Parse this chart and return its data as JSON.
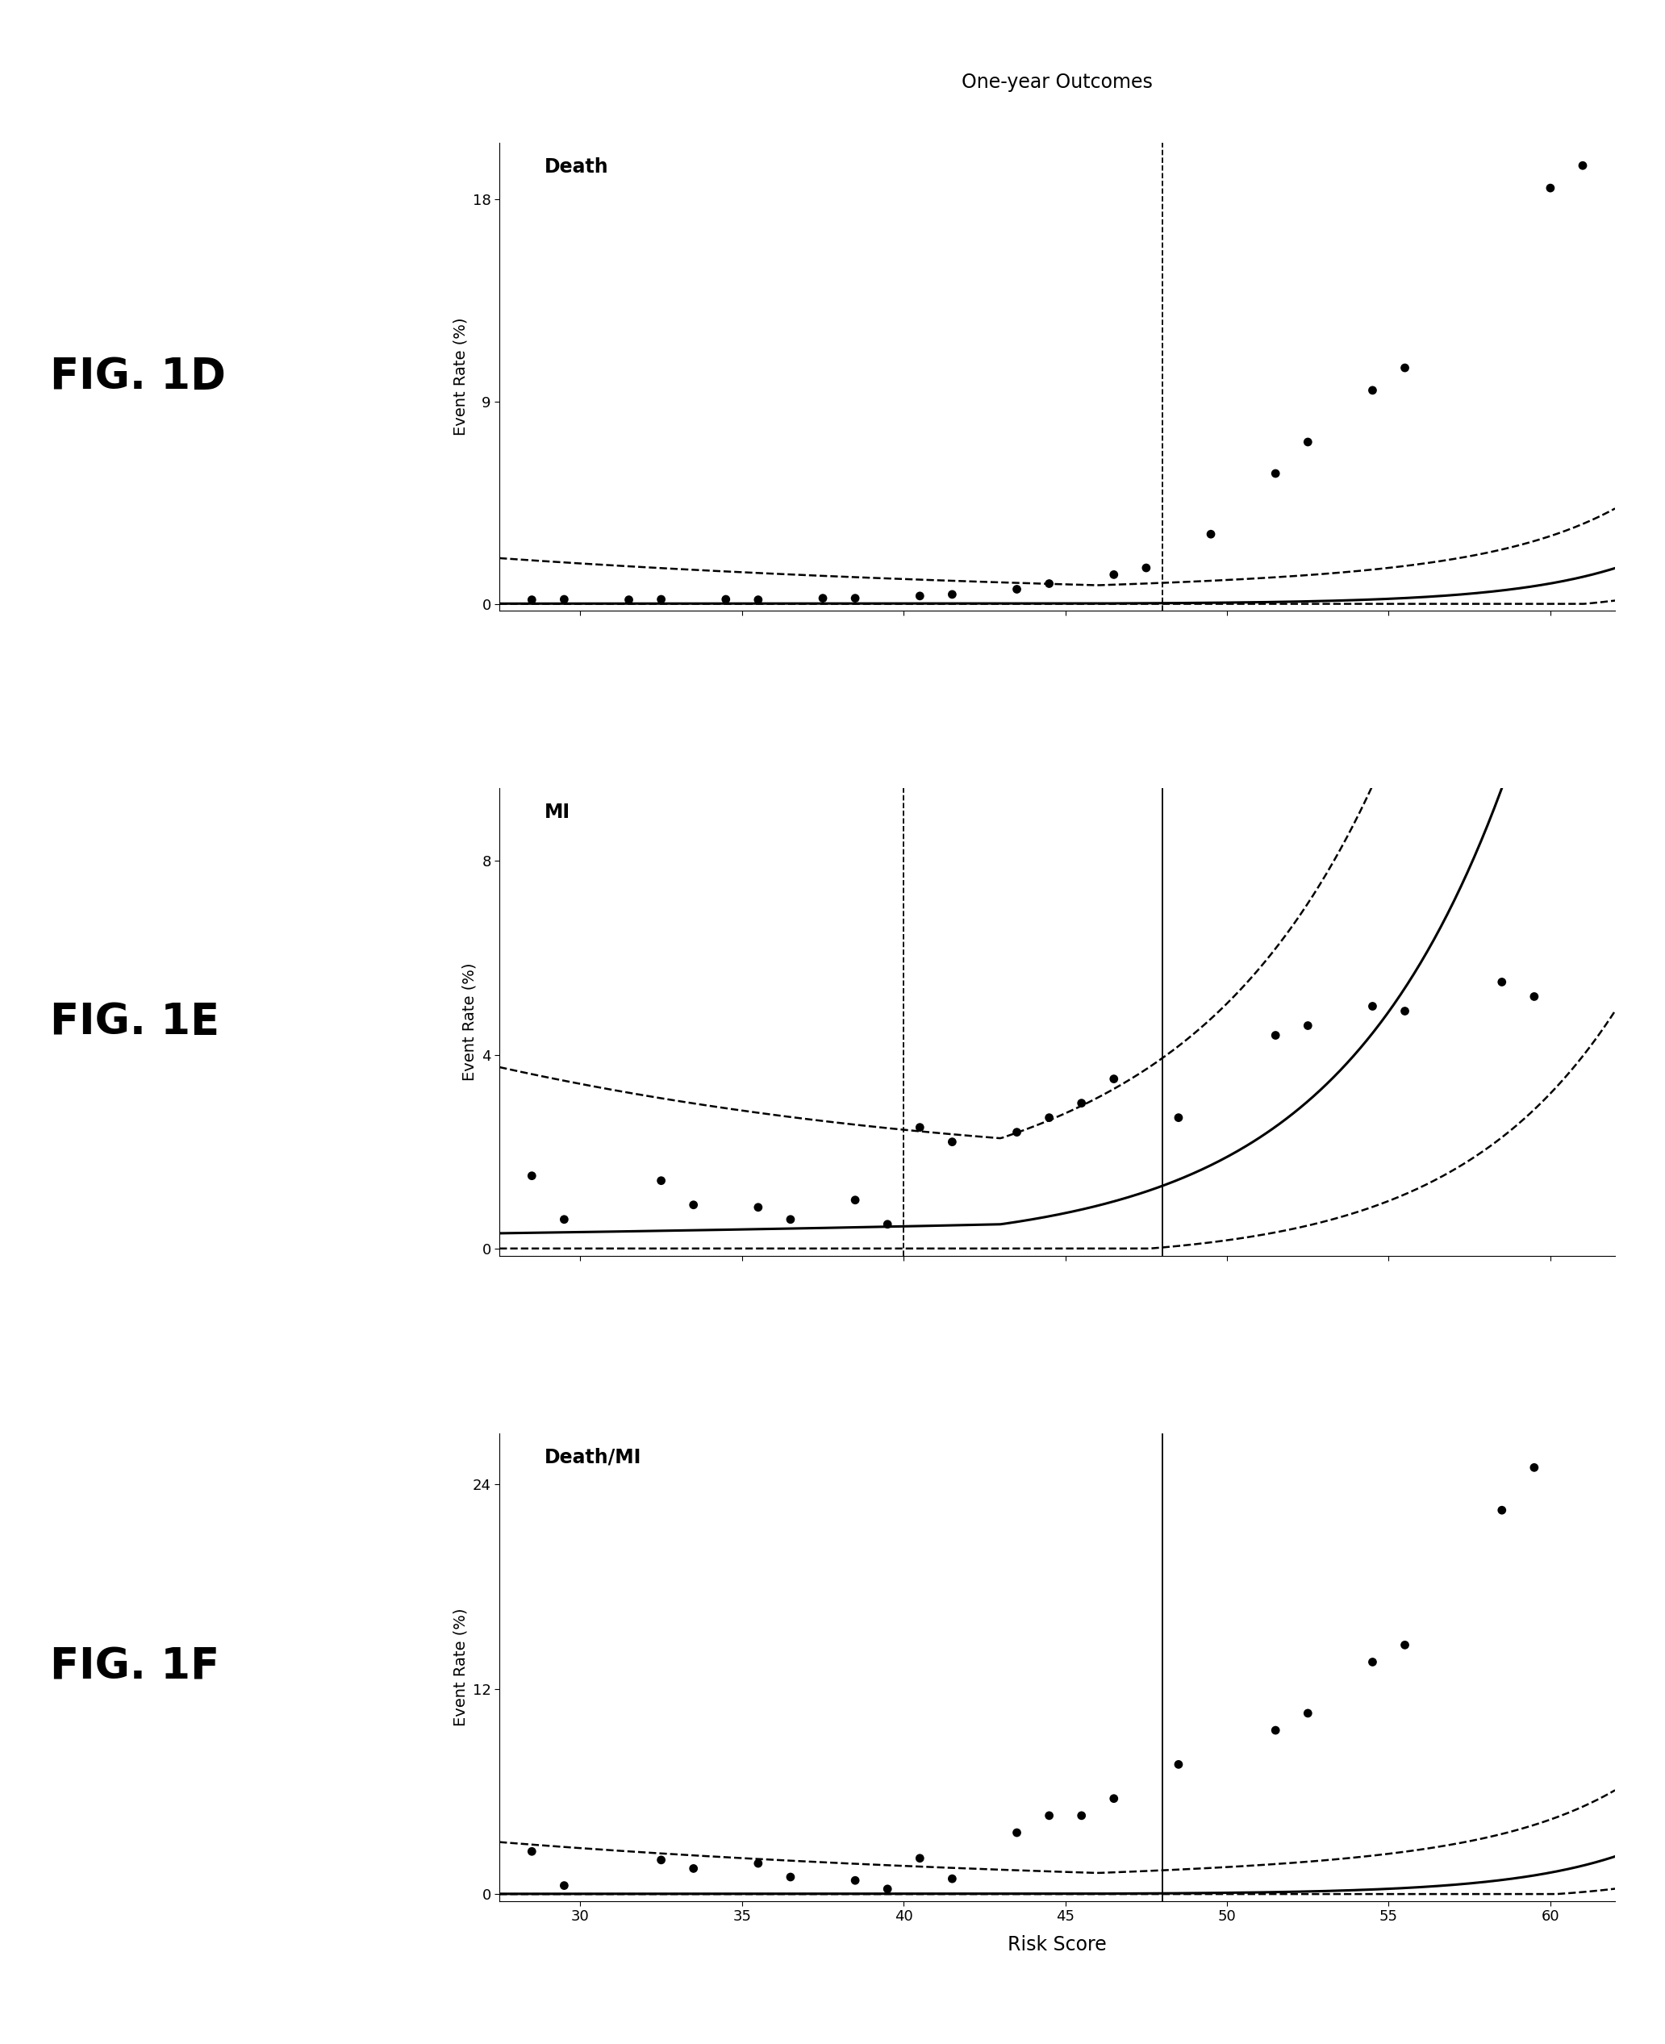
{
  "title": "One-year Outcomes",
  "xlabel": "Risk Score",
  "ylabel": "Event Rate (%)",
  "xlim": [
    27.5,
    62
  ],
  "xticks": [
    30,
    35,
    40,
    45,
    50,
    55,
    60
  ],
  "background_color": "#ffffff",
  "dot_color": "#000000",
  "curve_color": "#000000",
  "ci_color": "#000000",
  "vline_color": "#000000",
  "fig_label_fontsize": 38,
  "panel_title_fontsize": 17,
  "axis_label_fontsize": 14,
  "tick_fontsize": 13,
  "main_title_fontsize": 17,
  "dot_size": 60,
  "panels": [
    {
      "label": "FIG. 1D",
      "title": "Death",
      "ylim": [
        -0.3,
        20.5
      ],
      "yticks": [
        0,
        9,
        18
      ],
      "vlines": [
        48
      ],
      "vline_solid": [],
      "x_min": 46,
      "curve_a": 0.018,
      "curve_k": 0.28,
      "ci_upper_add": 0.8,
      "ci_upper_mult": 0.55,
      "ci_lower_mult": 0.55,
      "dots": [
        [
          28.5,
          0.18
        ],
        [
          29.5,
          0.2
        ],
        [
          31.5,
          0.18
        ],
        [
          32.5,
          0.2
        ],
        [
          34.5,
          0.2
        ],
        [
          35.5,
          0.18
        ],
        [
          37.5,
          0.25
        ],
        [
          38.5,
          0.25
        ],
        [
          40.5,
          0.35
        ],
        [
          41.5,
          0.42
        ],
        [
          43.5,
          0.65
        ],
        [
          44.5,
          0.9
        ],
        [
          46.5,
          1.3
        ],
        [
          47.5,
          1.6
        ],
        [
          49.5,
          3.1
        ],
        [
          51.5,
          5.8
        ],
        [
          52.5,
          7.2
        ],
        [
          54.5,
          9.5
        ],
        [
          55.5,
          10.5
        ],
        [
          60.0,
          18.5
        ],
        [
          61.0,
          19.5
        ]
      ]
    },
    {
      "label": "FIG. 1E",
      "title": "MI",
      "ylim": [
        -0.15,
        9.5
      ],
      "yticks": [
        0,
        4,
        8
      ],
      "vlines": [
        40,
        48
      ],
      "vline_solid": [
        48
      ],
      "x_min": 43,
      "curve_a": 0.5,
      "curve_k": 0.19,
      "ci_upper_add": 1.5,
      "ci_upper_mult": 0.55,
      "ci_lower_mult": 0.7,
      "dots": [
        [
          28.5,
          1.5
        ],
        [
          29.5,
          0.6
        ],
        [
          32.5,
          1.4
        ],
        [
          33.5,
          0.9
        ],
        [
          35.5,
          0.85
        ],
        [
          36.5,
          0.6
        ],
        [
          38.5,
          1.0
        ],
        [
          39.5,
          0.5
        ],
        [
          40.5,
          2.5
        ],
        [
          41.5,
          2.2
        ],
        [
          43.5,
          2.4
        ],
        [
          44.5,
          2.7
        ],
        [
          45.5,
          3.0
        ],
        [
          46.5,
          3.5
        ],
        [
          48.5,
          2.7
        ],
        [
          51.5,
          4.4
        ],
        [
          52.5,
          4.6
        ],
        [
          54.5,
          5.0
        ],
        [
          55.5,
          4.9
        ],
        [
          58.5,
          5.5
        ],
        [
          59.5,
          5.2
        ]
      ]
    },
    {
      "label": "FIG. 1F",
      "title": "Death/MI",
      "ylim": [
        -0.4,
        27
      ],
      "yticks": [
        0,
        12,
        24
      ],
      "vlines": [
        48
      ],
      "vline_solid": [
        48
      ],
      "x_min": 46,
      "curve_a": 0.025,
      "curve_k": 0.28,
      "ci_upper_add": 1.2,
      "ci_upper_mult": 0.55,
      "ci_lower_mult": 0.6,
      "dots": [
        [
          28.5,
          2.5
        ],
        [
          29.5,
          0.5
        ],
        [
          32.5,
          2.0
        ],
        [
          33.5,
          1.5
        ],
        [
          35.5,
          1.8
        ],
        [
          36.5,
          1.0
        ],
        [
          38.5,
          0.8
        ],
        [
          39.5,
          0.3
        ],
        [
          40.5,
          2.1
        ],
        [
          41.5,
          0.9
        ],
        [
          43.5,
          3.6
        ],
        [
          44.5,
          4.6
        ],
        [
          45.5,
          4.6
        ],
        [
          46.5,
          5.6
        ],
        [
          48.5,
          7.6
        ],
        [
          51.5,
          9.6
        ],
        [
          52.5,
          10.6
        ],
        [
          54.5,
          13.6
        ],
        [
          55.5,
          14.6
        ],
        [
          58.5,
          22.5
        ],
        [
          59.5,
          25.0
        ]
      ]
    }
  ]
}
